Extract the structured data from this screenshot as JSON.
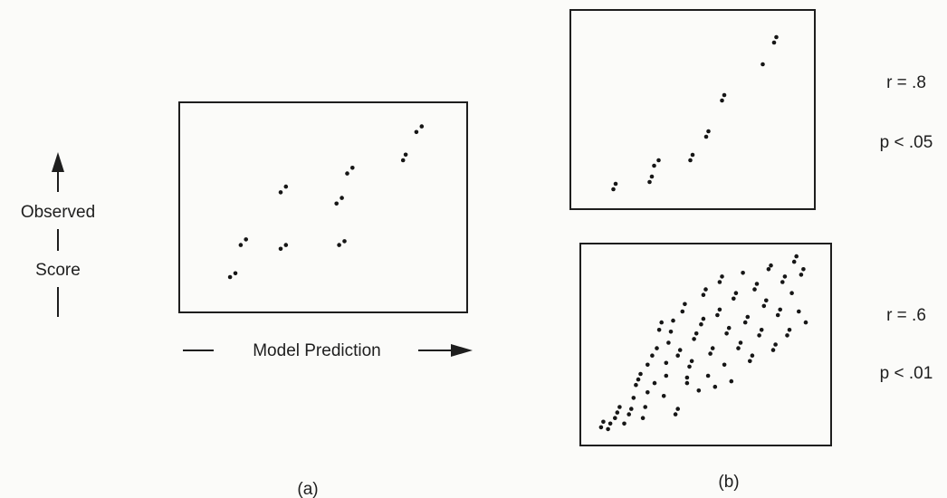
{
  "figure": {
    "y_axis_label_top": "Observed",
    "y_axis_label_bottom": "Score",
    "x_axis_label": "Model Prediction",
    "panel_a_caption": "(a)",
    "panel_b_caption": "(b)",
    "top_stats": {
      "r": "r = .8",
      "p": "p < .05"
    },
    "bottom_stats": {
      "r": "r = .6",
      "p": "p < .01"
    }
  },
  "chart_data": [
    {
      "type": "scatter",
      "panel": "a",
      "xlabel": "Model Prediction",
      "ylabel": "Observed Score",
      "xlim": [
        0,
        1
      ],
      "ylim": [
        0,
        1
      ],
      "grid": false,
      "series": [
        {
          "points": [
            [
              0.15,
              0.13
            ],
            [
              0.17,
              0.15
            ],
            [
              0.19,
              0.3
            ],
            [
              0.21,
              0.33
            ],
            [
              0.34,
              0.28
            ],
            [
              0.36,
              0.3
            ],
            [
              0.34,
              0.58
            ],
            [
              0.36,
              0.61
            ],
            [
              0.55,
              0.52
            ],
            [
              0.57,
              0.55
            ],
            [
              0.56,
              0.3
            ],
            [
              0.58,
              0.32
            ],
            [
              0.59,
              0.68
            ],
            [
              0.61,
              0.71
            ],
            [
              0.8,
              0.75
            ],
            [
              0.81,
              0.78
            ],
            [
              0.85,
              0.9
            ],
            [
              0.87,
              0.93
            ]
          ]
        }
      ]
    },
    {
      "type": "scatter",
      "panel": "b-top",
      "xlim": [
        0,
        1
      ],
      "ylim": [
        0,
        1
      ],
      "grid": false,
      "annotations": [
        "r = .8",
        "p < .05"
      ],
      "series": [
        {
          "points": [
            [
              0.15,
              0.06
            ],
            [
              0.16,
              0.09
            ],
            [
              0.31,
              0.1
            ],
            [
              0.32,
              0.13
            ],
            [
              0.33,
              0.19
            ],
            [
              0.35,
              0.22
            ],
            [
              0.49,
              0.22
            ],
            [
              0.5,
              0.25
            ],
            [
              0.56,
              0.35
            ],
            [
              0.57,
              0.38
            ],
            [
              0.63,
              0.55
            ],
            [
              0.64,
              0.58
            ],
            [
              0.81,
              0.75
            ],
            [
              0.86,
              0.87
            ],
            [
              0.87,
              0.9
            ]
          ]
        }
      ]
    },
    {
      "type": "scatter",
      "panel": "b-bottom",
      "xlim": [
        0,
        1
      ],
      "ylim": [
        0,
        1
      ],
      "grid": false,
      "annotations": [
        "r = .6",
        "p < .01"
      ],
      "series": [
        {
          "points": [
            [
              0.05,
              0.05
            ],
            [
              0.06,
              0.08
            ],
            [
              0.08,
              0.04
            ],
            [
              0.09,
              0.07
            ],
            [
              0.11,
              0.1
            ],
            [
              0.12,
              0.13
            ],
            [
              0.13,
              0.16
            ],
            [
              0.15,
              0.07
            ],
            [
              0.17,
              0.12
            ],
            [
              0.18,
              0.15
            ],
            [
              0.19,
              0.21
            ],
            [
              0.2,
              0.28
            ],
            [
              0.21,
              0.31
            ],
            [
              0.22,
              0.34
            ],
            [
              0.23,
              0.1
            ],
            [
              0.24,
              0.16
            ],
            [
              0.25,
              0.24
            ],
            [
              0.25,
              0.39
            ],
            [
              0.27,
              0.44
            ],
            [
              0.28,
              0.29
            ],
            [
              0.29,
              0.48
            ],
            [
              0.3,
              0.58
            ],
            [
              0.31,
              0.62
            ],
            [
              0.32,
              0.22
            ],
            [
              0.33,
              0.33
            ],
            [
              0.33,
              0.4
            ],
            [
              0.34,
              0.51
            ],
            [
              0.35,
              0.57
            ],
            [
              0.36,
              0.63
            ],
            [
              0.37,
              0.12
            ],
            [
              0.38,
              0.15
            ],
            [
              0.38,
              0.44
            ],
            [
              0.39,
              0.47
            ],
            [
              0.4,
              0.68
            ],
            [
              0.41,
              0.72
            ],
            [
              0.42,
              0.29
            ],
            [
              0.42,
              0.32
            ],
            [
              0.43,
              0.38
            ],
            [
              0.44,
              0.41
            ],
            [
              0.45,
              0.53
            ],
            [
              0.46,
              0.56
            ],
            [
              0.47,
              0.25
            ],
            [
              0.48,
              0.61
            ],
            [
              0.49,
              0.64
            ],
            [
              0.49,
              0.77
            ],
            [
              0.5,
              0.8
            ],
            [
              0.51,
              0.33
            ],
            [
              0.52,
              0.45
            ],
            [
              0.53,
              0.48
            ],
            [
              0.54,
              0.27
            ],
            [
              0.55,
              0.66
            ],
            [
              0.56,
              0.69
            ],
            [
              0.56,
              0.84
            ],
            [
              0.57,
              0.87
            ],
            [
              0.58,
              0.39
            ],
            [
              0.59,
              0.56
            ],
            [
              0.6,
              0.59
            ],
            [
              0.61,
              0.3
            ],
            [
              0.62,
              0.75
            ],
            [
              0.63,
              0.78
            ],
            [
              0.64,
              0.48
            ],
            [
              0.65,
              0.51
            ],
            [
              0.66,
              0.89
            ],
            [
              0.67,
              0.62
            ],
            [
              0.68,
              0.65
            ],
            [
              0.69,
              0.41
            ],
            [
              0.7,
              0.44
            ],
            [
              0.71,
              0.8
            ],
            [
              0.72,
              0.83
            ],
            [
              0.73,
              0.55
            ],
            [
              0.74,
              0.58
            ],
            [
              0.75,
              0.71
            ],
            [
              0.76,
              0.74
            ],
            [
              0.77,
              0.91
            ],
            [
              0.78,
              0.93
            ],
            [
              0.79,
              0.47
            ],
            [
              0.8,
              0.5
            ],
            [
              0.81,
              0.66
            ],
            [
              0.82,
              0.69
            ],
            [
              0.83,
              0.84
            ],
            [
              0.84,
              0.87
            ],
            [
              0.85,
              0.55
            ],
            [
              0.86,
              0.58
            ],
            [
              0.87,
              0.78
            ],
            [
              0.88,
              0.95
            ],
            [
              0.89,
              0.98
            ],
            [
              0.9,
              0.68
            ],
            [
              0.91,
              0.88
            ],
            [
              0.92,
              0.91
            ],
            [
              0.93,
              0.62
            ]
          ]
        }
      ]
    }
  ]
}
